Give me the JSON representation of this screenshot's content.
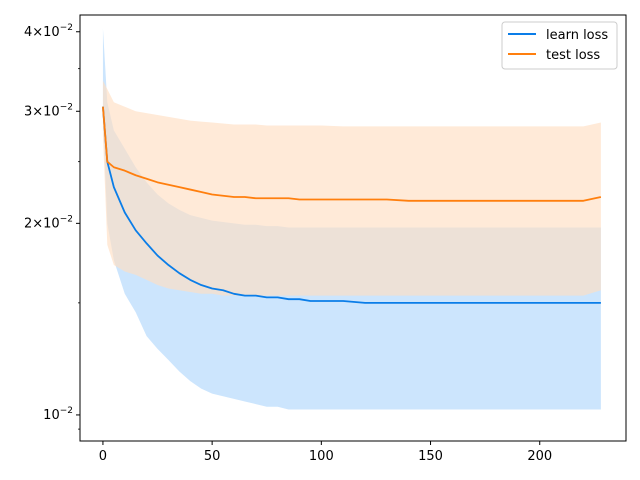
{
  "chart_data": {
    "type": "line",
    "title": "",
    "xlabel": "",
    "ylabel": "",
    "yscale": "log",
    "xlim": [
      -10.5,
      239.5
    ],
    "ylim": [
      0.0091,
      0.0425
    ],
    "grid": false,
    "legend_position": "top-right",
    "x_ticks": [
      {
        "value": 0,
        "label": "0"
      },
      {
        "value": 50,
        "label": "50"
      },
      {
        "value": 100,
        "label": "100"
      },
      {
        "value": 150,
        "label": "150"
      },
      {
        "value": 200,
        "label": "200"
      }
    ],
    "y_ticks": [
      {
        "value": 0.01,
        "base": "10",
        "exp": "−2",
        "coef": ""
      },
      {
        "value": 0.02,
        "base": "10",
        "exp": "−2",
        "coef": "2"
      },
      {
        "value": 0.03,
        "base": "10",
        "exp": "−2",
        "coef": "3"
      },
      {
        "value": 0.04,
        "base": "10",
        "exp": "−2",
        "coef": "4"
      }
    ],
    "series": [
      {
        "name": "learn loss",
        "color": "#0a7de8",
        "band_color": "#cce5fd",
        "x": [
          0,
          2,
          5,
          10,
          15,
          20,
          25,
          30,
          35,
          40,
          45,
          50,
          55,
          60,
          65,
          70,
          75,
          80,
          85,
          90,
          95,
          100,
          110,
          120,
          130,
          140,
          150,
          160,
          170,
          180,
          190,
          200,
          210,
          220,
          228
        ],
        "y": [
          0.0305,
          0.025,
          0.0228,
          0.0208,
          0.0195,
          0.0186,
          0.0178,
          0.0172,
          0.0167,
          0.0163,
          0.016,
          0.0158,
          0.0157,
          0.0155,
          0.0154,
          0.0154,
          0.0153,
          0.0153,
          0.0152,
          0.0152,
          0.0151,
          0.0151,
          0.0151,
          0.015,
          0.015,
          0.015,
          0.015,
          0.015,
          0.015,
          0.015,
          0.015,
          0.015,
          0.015,
          0.015,
          0.015
        ],
        "lower": [
          0.0292,
          0.02,
          0.0175,
          0.0155,
          0.0145,
          0.0133,
          0.0127,
          0.0122,
          0.0117,
          0.0113,
          0.011,
          0.0108,
          0.0107,
          0.0106,
          0.0105,
          0.0104,
          0.0103,
          0.0103,
          0.0102,
          0.0102,
          0.0102,
          0.0102,
          0.0102,
          0.0102,
          0.0102,
          0.0102,
          0.0102,
          0.0102,
          0.0102,
          0.0102,
          0.0102,
          0.0102,
          0.0102,
          0.0102,
          0.0102
        ],
        "upper": [
          0.0405,
          0.031,
          0.028,
          0.0262,
          0.0245,
          0.0232,
          0.0222,
          0.0215,
          0.021,
          0.0206,
          0.0204,
          0.0202,
          0.0201,
          0.02,
          0.0199,
          0.0199,
          0.0198,
          0.0198,
          0.0197,
          0.0197,
          0.0197,
          0.0197,
          0.0197,
          0.0197,
          0.0197,
          0.0197,
          0.0197,
          0.0197,
          0.0197,
          0.0197,
          0.0197,
          0.0197,
          0.0197,
          0.0197,
          0.0197
        ]
      },
      {
        "name": "test loss",
        "color": "#ff7f0e",
        "band_color": "#ffdfc3",
        "x": [
          0,
          2,
          5,
          10,
          15,
          20,
          25,
          30,
          35,
          40,
          45,
          50,
          55,
          60,
          65,
          70,
          75,
          80,
          85,
          90,
          95,
          100,
          110,
          120,
          130,
          140,
          150,
          160,
          170,
          180,
          190,
          200,
          210,
          220,
          228
        ],
        "y": [
          0.0305,
          0.025,
          0.0245,
          0.0242,
          0.0238,
          0.0235,
          0.0232,
          0.023,
          0.0228,
          0.0226,
          0.0224,
          0.0222,
          0.0221,
          0.022,
          0.022,
          0.0219,
          0.0219,
          0.0219,
          0.0219,
          0.0218,
          0.0218,
          0.0218,
          0.0218,
          0.0218,
          0.0218,
          0.0217,
          0.0217,
          0.0217,
          0.0217,
          0.0217,
          0.0217,
          0.0217,
          0.0217,
          0.0217,
          0.022
        ],
        "lower": [
          0.0275,
          0.0185,
          0.0172,
          0.0168,
          0.0166,
          0.0163,
          0.016,
          0.0158,
          0.0157,
          0.0156,
          0.0155,
          0.0155,
          0.0154,
          0.0154,
          0.0154,
          0.0154,
          0.0154,
          0.0154,
          0.0154,
          0.0154,
          0.0154,
          0.0154,
          0.0154,
          0.0154,
          0.0154,
          0.0154,
          0.0154,
          0.0154,
          0.0154,
          0.0154,
          0.0154,
          0.0154,
          0.0154,
          0.0154,
          0.0157
        ],
        "upper": [
          0.0335,
          0.0325,
          0.031,
          0.0305,
          0.03,
          0.0298,
          0.0296,
          0.0294,
          0.0292,
          0.029,
          0.0289,
          0.0288,
          0.0287,
          0.0286,
          0.0286,
          0.0286,
          0.0285,
          0.0285,
          0.0285,
          0.0285,
          0.0285,
          0.0285,
          0.0284,
          0.0284,
          0.0284,
          0.0284,
          0.0284,
          0.0284,
          0.0284,
          0.0284,
          0.0284,
          0.0284,
          0.0284,
          0.0284,
          0.0288
        ]
      }
    ]
  }
}
